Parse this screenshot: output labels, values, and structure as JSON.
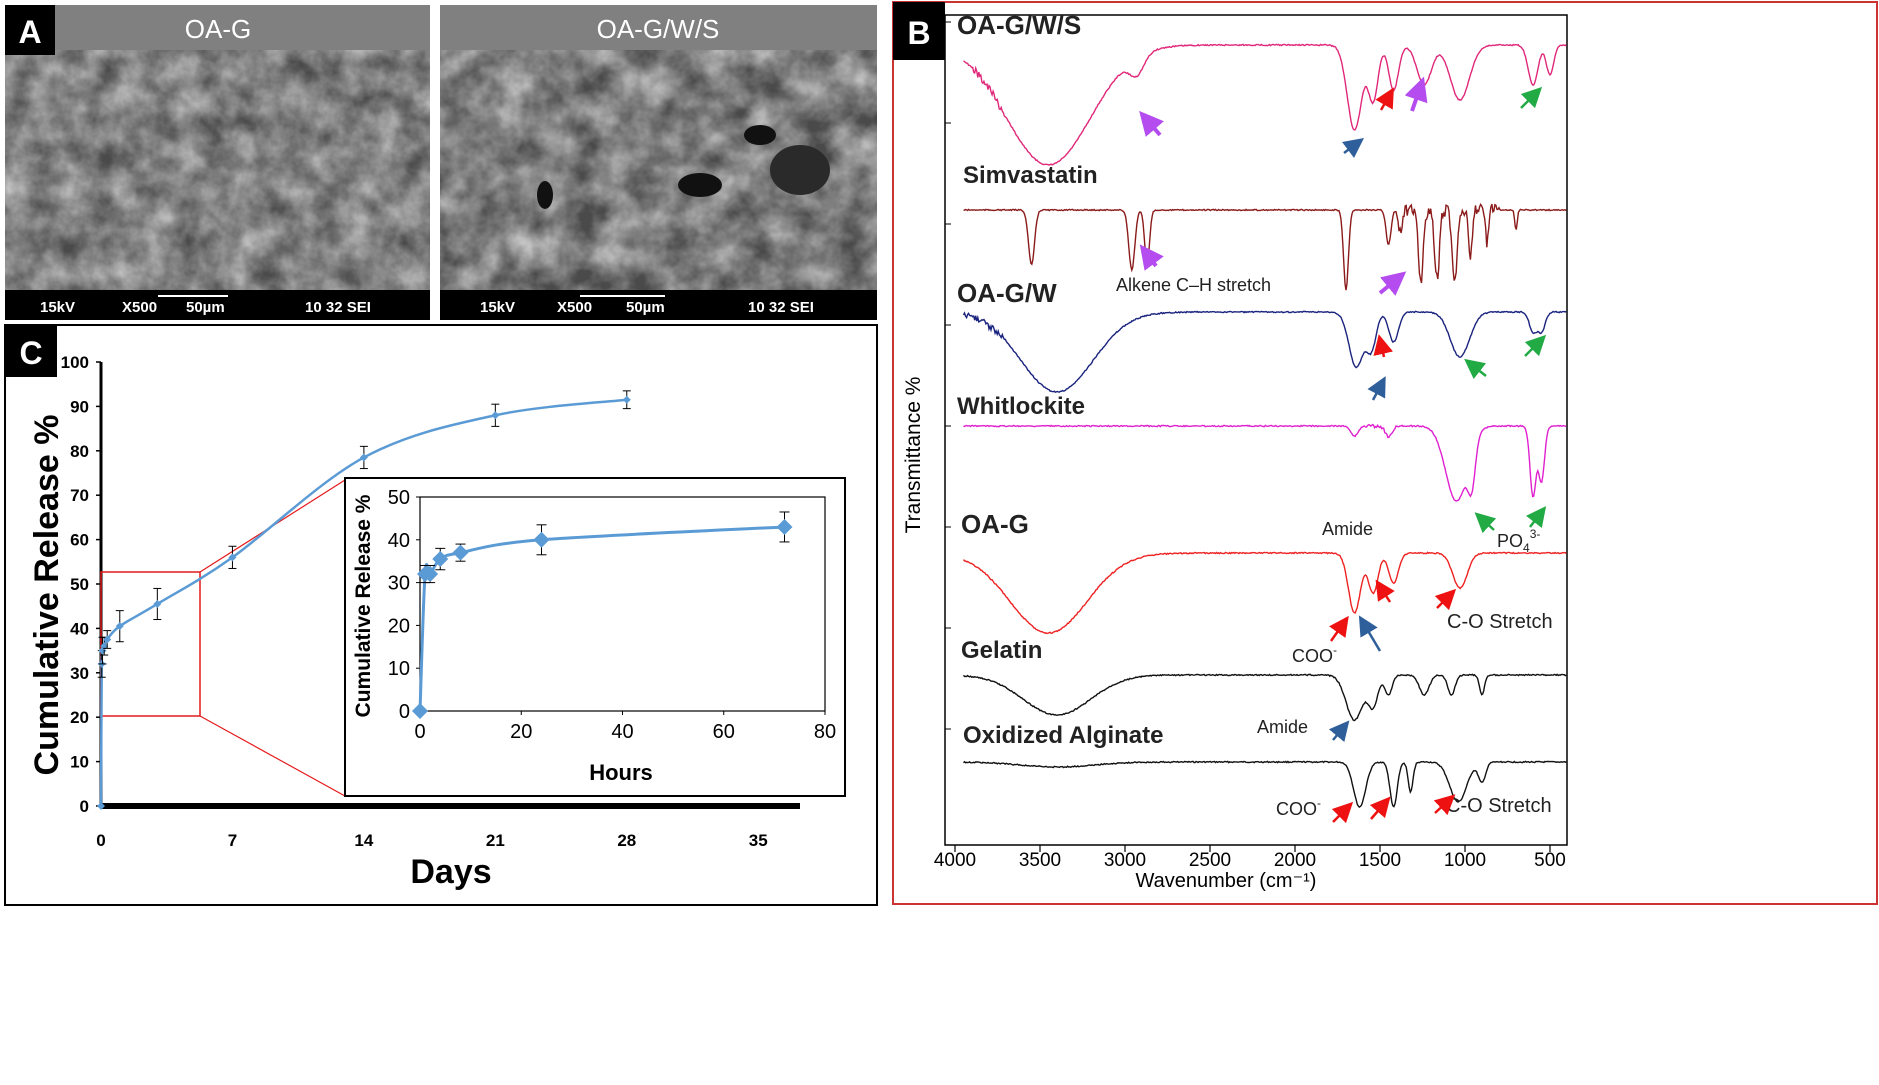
{
  "panelA": {
    "badge": "A",
    "images": [
      {
        "title": "OA-G",
        "kv": "15kV",
        "mag": "X500",
        "scale": "50µm",
        "info": "10 32 SEI"
      },
      {
        "title": "OA-G/W/S",
        "kv": "15kV",
        "mag": "X500",
        "scale": "50µm",
        "info": "10 32 SEI"
      }
    ]
  },
  "panelB": {
    "badge": "B",
    "xlabel": "Wavenumber  (cm⁻¹)",
    "ylabel": "Transmittance %",
    "xticks": [
      4000,
      3500,
      3000,
      2500,
      2000,
      1500,
      1000,
      500
    ],
    "xlim": [
      4000,
      400
    ],
    "spectra": [
      {
        "name": "OA-G/W/S",
        "color": "#e0287a"
      },
      {
        "name": "Simvastatin",
        "color": "#8b1a1a"
      },
      {
        "name": "OA-G/W",
        "color": "#1a237e"
      },
      {
        "name": "Whitlockite",
        "color": "#e020d0"
      },
      {
        "name": "OA-G",
        "color": "#ee2222"
      },
      {
        "name": "Gelatin",
        "color": "#111111"
      },
      {
        "name": "Oxidized Alginate",
        "color": "#111111"
      }
    ],
    "annotations": {
      "alkene": "Alkene C–H stretch",
      "amide1": "Amide",
      "po4": "PO",
      "po4_sub": "4",
      "po4_sup": "3-",
      "co_stretch1": "C-O Stretch",
      "coo1": "COO",
      "coo1_sup": "-",
      "amide2": "Amide",
      "coo2": "COO",
      "coo2_sup": "-",
      "co_stretch2": "C-O Stretch"
    }
  },
  "panelC": {
    "badge": "C",
    "ylabel": "Cumulative Release %",
    "xlabel": "Days",
    "inset_ylabel": "Cumulative Release %",
    "inset_xlabel": "Hours"
  },
  "chart_data": [
    {
      "type": "line",
      "title": "",
      "xlabel": "Days",
      "ylabel": "Cumulative Release %",
      "xlim": [
        0,
        36
      ],
      "ylim": [
        0,
        100
      ],
      "xticks": [
        0,
        7,
        14,
        21,
        28,
        35
      ],
      "yticks": [
        0,
        10,
        20,
        30,
        40,
        50,
        60,
        70,
        80,
        90,
        100
      ],
      "series": [
        {
          "color": "#5b9bd5",
          "x": [
            0,
            0.04,
            0.08,
            0.17,
            0.33,
            1,
            3,
            7,
            14,
            21,
            28
          ],
          "y": [
            0,
            32,
            35,
            36,
            37.5,
            40.5,
            45.5,
            56,
            78.5,
            88,
            91.5
          ],
          "err": [
            0,
            3,
            3,
            2,
            2,
            3.5,
            3.5,
            2.5,
            2.5,
            2.5,
            2
          ]
        }
      ]
    },
    {
      "type": "line",
      "title": "",
      "xlabel": "Hours",
      "ylabel": "Cumulative Release %",
      "xlim": [
        0,
        80
      ],
      "ylim": [
        0,
        50
      ],
      "xticks": [
        0,
        20,
        40,
        60,
        80
      ],
      "yticks": [
        0,
        10,
        20,
        30,
        40,
        50
      ],
      "series": [
        {
          "color": "#5b9bd5",
          "x": [
            0,
            1,
            2,
            4,
            8,
            24,
            72
          ],
          "y": [
            0,
            32,
            32,
            35.5,
            37,
            40,
            43
          ],
          "err": [
            0,
            2,
            2,
            2.5,
            2,
            3.5,
            3.5
          ]
        }
      ]
    }
  ]
}
